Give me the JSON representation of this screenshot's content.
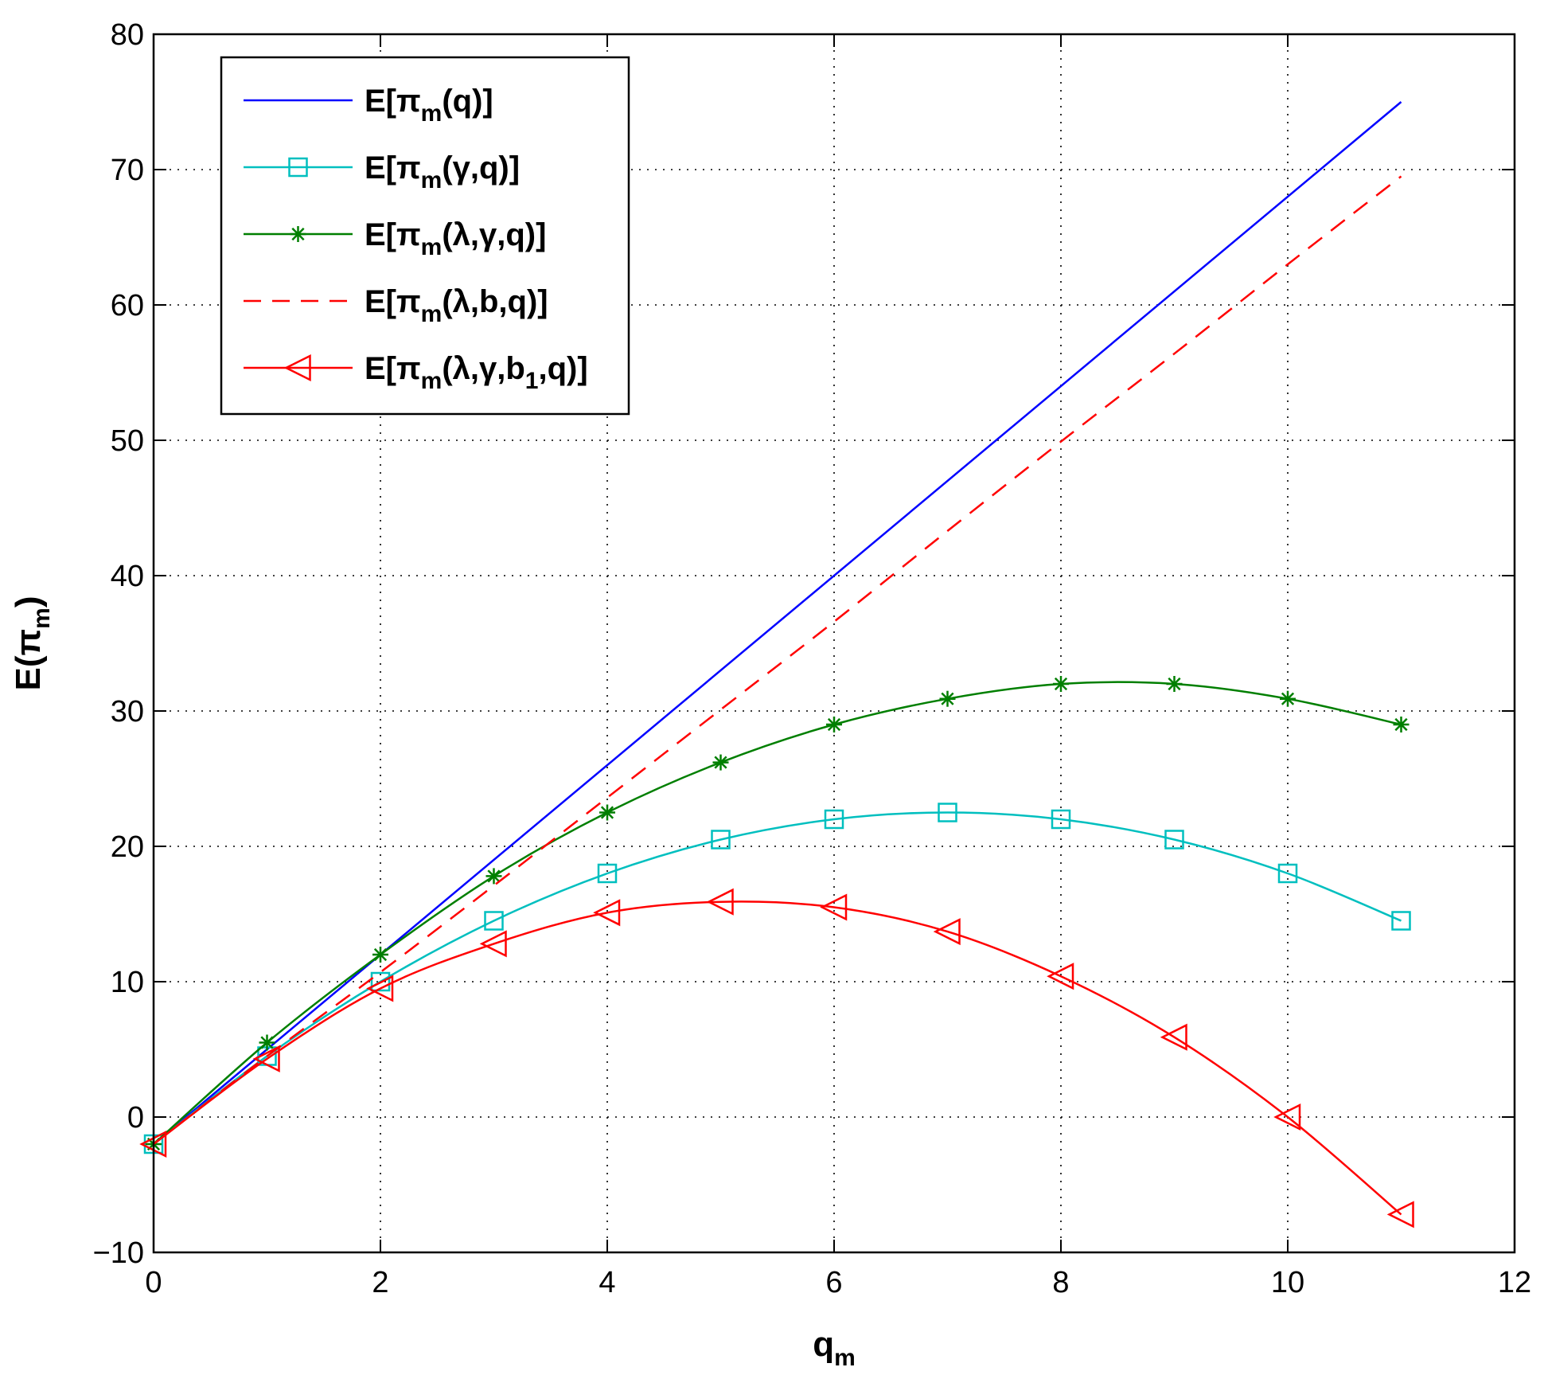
{
  "chart_data": {
    "type": "line",
    "title": "",
    "xlabel": {
      "main": "q",
      "sub": "m"
    },
    "ylabel": {
      "main": "E(π",
      "sub": "m",
      "close": ")"
    },
    "xlim": [
      0,
      12
    ],
    "ylim": [
      -10,
      80
    ],
    "xticks": [
      0,
      2,
      4,
      6,
      8,
      10,
      12
    ],
    "xtick_labels": [
      "0",
      "2",
      "4",
      "6",
      "8",
      "10",
      "12"
    ],
    "yticks": [
      -10,
      0,
      10,
      20,
      30,
      40,
      50,
      60,
      70,
      80
    ],
    "ytick_labels": [
      "−10",
      "0",
      "10",
      "20",
      "30",
      "40",
      "50",
      "60",
      "70",
      "80"
    ],
    "grid": true,
    "legend_position": "top-left",
    "series": [
      {
        "name": "E[πm(q)]",
        "label_parts": [
          {
            "t": "E[π"
          },
          {
            "t": "m",
            "sub": true
          },
          {
            "t": "(q)]"
          }
        ],
        "color": "#0000ff",
        "dash": "solid",
        "marker": "none",
        "smooth": false,
        "x": [
          0,
          11
        ],
        "y": [
          -2,
          75
        ]
      },
      {
        "name": "E[πm(γ,q)]",
        "label_parts": [
          {
            "t": "E[π"
          },
          {
            "t": "m",
            "sub": true
          },
          {
            "t": "(γ,q)]"
          }
        ],
        "color": "#00bfbf",
        "dash": "solid",
        "marker": "square",
        "smooth": true,
        "x": [
          0,
          1,
          2,
          3,
          4,
          5,
          6,
          7,
          8,
          9,
          10,
          11
        ],
        "y": [
          -2,
          4.5,
          10,
          14.5,
          18,
          20.5,
          22,
          22.5,
          22,
          20.5,
          18,
          14.5
        ]
      },
      {
        "name": "E[πm(λ,γ,q)]",
        "label_parts": [
          {
            "t": "E[π"
          },
          {
            "t": "m",
            "sub": true
          },
          {
            "t": "(λ,γ,q)]"
          }
        ],
        "color": "#007f00",
        "dash": "solid",
        "marker": "star",
        "smooth": true,
        "x": [
          0,
          1,
          2,
          3,
          4,
          5,
          6,
          7,
          8,
          9,
          10,
          11
        ],
        "y": [
          -2,
          5.5,
          12,
          17.8,
          22.5,
          26.2,
          29,
          30.9,
          32,
          32,
          30.9,
          29
        ]
      },
      {
        "name": "E[πm(λ,b,q)]",
        "label_parts": [
          {
            "t": "E[π"
          },
          {
            "t": "m",
            "sub": true
          },
          {
            "t": "(λ,b,q)]"
          }
        ],
        "color": "#ff0000",
        "dash": "dashed",
        "marker": "none",
        "smooth": true,
        "x": [
          0,
          1,
          2,
          3,
          4,
          5,
          6,
          7,
          8,
          9,
          10,
          11
        ],
        "y": [
          -2,
          4.5,
          10.7,
          17.1,
          23.6,
          30.1,
          36.6,
          43.3,
          49.9,
          56.4,
          63,
          69.5
        ]
      },
      {
        "name": "E[πm(λ,γ,b1,q)]",
        "label_parts": [
          {
            "t": "E[π"
          },
          {
            "t": "m",
            "sub": true
          },
          {
            "t": "(λ,γ,b"
          },
          {
            "t": "1",
            "sub": true
          },
          {
            "t": ",q)]"
          }
        ],
        "color": "#ff0000",
        "dash": "solid",
        "marker": "triangle-left",
        "smooth": true,
        "x": [
          0,
          1,
          2,
          3,
          4,
          5,
          6,
          7,
          8,
          9,
          10,
          11
        ],
        "y": [
          -2,
          4.3,
          9.5,
          12.8,
          15.1,
          15.9,
          15.5,
          13.7,
          10.4,
          5.9,
          0,
          -7.2
        ]
      }
    ]
  }
}
